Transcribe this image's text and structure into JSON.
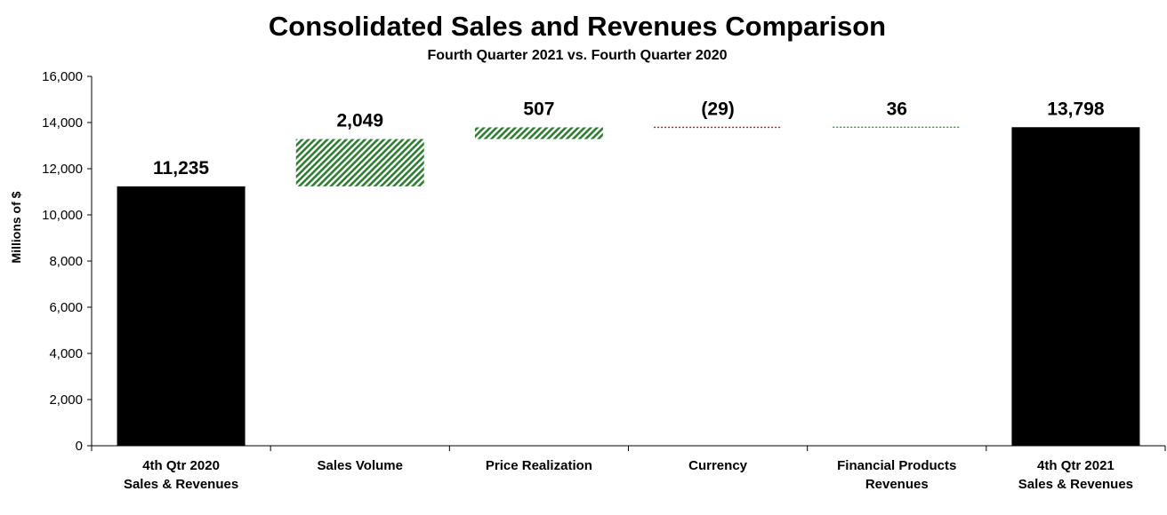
{
  "chart_data": {
    "type": "waterfall",
    "title": "Consolidated Sales and Revenues Comparison",
    "subtitle": "Fourth Quarter 2021 vs. Fourth Quarter 2020",
    "xlabel": "",
    "ylabel": "Millions of $",
    "ylim": [
      0,
      16000
    ],
    "yticks": [
      "0",
      "2,000",
      "4,000",
      "6,000",
      "8,000",
      "10,000",
      "12,000",
      "14,000",
      "16,000"
    ],
    "ytick_values": [
      0,
      2000,
      4000,
      6000,
      8000,
      10000,
      12000,
      14000,
      16000
    ],
    "grid": false,
    "categories": [
      [
        "4th Qtr 2020",
        "Sales & Revenues"
      ],
      [
        "Sales Volume"
      ],
      [
        "Price Realization"
      ],
      [
        "Currency"
      ],
      [
        "Financial Products",
        "Revenues"
      ],
      [
        "4th Qtr 2021",
        "Sales & Revenues"
      ]
    ],
    "values": [
      11235,
      2049,
      507,
      -29,
      36,
      13798
    ],
    "kinds": [
      "total",
      "increase",
      "increase",
      "decrease",
      "increase",
      "total"
    ],
    "data_labels": [
      "11,235",
      "2,049",
      "507",
      "(29)",
      "36",
      "13,798"
    ],
    "colors": {
      "total": "#000000",
      "increase": "#2e7d32",
      "decrease": "#a0282a"
    }
  }
}
